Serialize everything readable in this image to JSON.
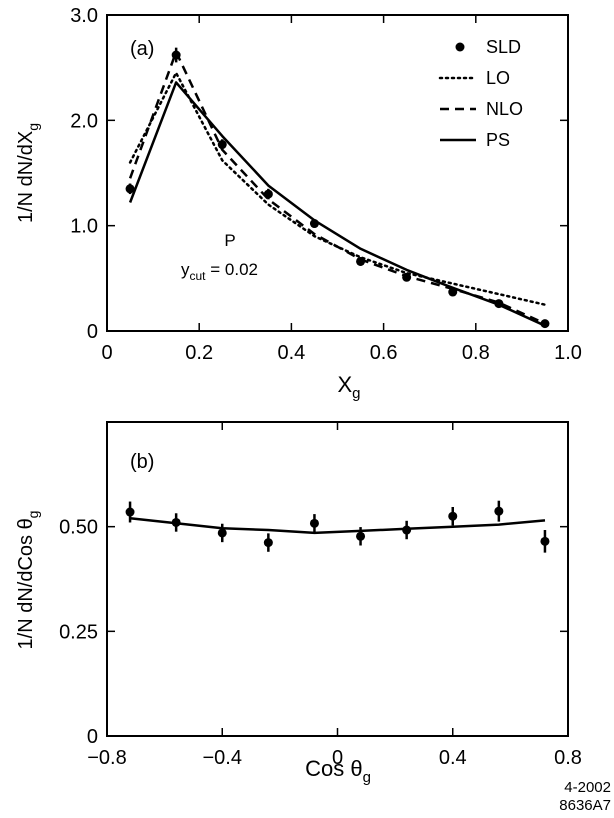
{
  "chart_data": [
    {
      "panel": "(a)",
      "type": "line",
      "ylabel_main": "1/N dN/dX",
      "ylabel_sub": "g",
      "xlabel_main": "X",
      "xlabel_sub": "g",
      "xlim": [
        0,
        1.0
      ],
      "ylim": [
        0,
        3.0
      ],
      "xticks": [
        0,
        0.2,
        0.4,
        0.6,
        0.8,
        1.0
      ],
      "xtick_labels": [
        "0",
        "0.2",
        "0.4",
        "0.6",
        "0.8",
        "1.0"
      ],
      "yticks": [
        0,
        1.0,
        2.0,
        3.0
      ],
      "ytick_labels": [
        "0",
        "1.0",
        "2.0",
        "3.0"
      ],
      "annotation_line1": "P",
      "annotation_y": "y",
      "annotation_sub": "cut",
      "annotation_val": " = 0.02",
      "legend_placement": "top-right",
      "legend": [
        "SLD",
        "LO",
        "NLO",
        "PS"
      ],
      "series": [
        {
          "name": "SLD",
          "style": "points",
          "x": [
            0.05,
            0.15,
            0.25,
            0.35,
            0.45,
            0.55,
            0.65,
            0.75,
            0.85,
            0.95
          ],
          "y": [
            1.35,
            2.62,
            1.77,
            1.3,
            1.02,
            0.66,
            0.51,
            0.37,
            0.26,
            0.07
          ],
          "err": [
            0.05,
            0.07,
            0.05,
            0.05,
            0.04,
            0.04,
            0.03,
            0.03,
            0.03,
            0.02
          ]
        },
        {
          "name": "LO",
          "style": "dotted",
          "x": [
            0.05,
            0.15,
            0.25,
            0.35,
            0.45,
            0.55,
            0.65,
            0.75,
            0.85,
            0.95
          ],
          "y": [
            1.6,
            2.45,
            1.62,
            1.2,
            0.9,
            0.7,
            0.55,
            0.45,
            0.35,
            0.25
          ]
        },
        {
          "name": "NLO",
          "style": "dashed",
          "x": [
            0.05,
            0.15,
            0.25,
            0.35,
            0.45,
            0.55,
            0.65,
            0.75,
            0.85,
            0.95
          ],
          "y": [
            1.45,
            2.65,
            1.72,
            1.25,
            0.92,
            0.68,
            0.52,
            0.4,
            0.27,
            0.07
          ]
        },
        {
          "name": "PS",
          "style": "solid",
          "x": [
            0.05,
            0.15,
            0.25,
            0.35,
            0.45,
            0.55,
            0.65,
            0.75,
            0.85,
            0.95
          ],
          "y": [
            1.22,
            2.36,
            1.85,
            1.38,
            1.05,
            0.78,
            0.58,
            0.41,
            0.25,
            0.05
          ]
        }
      ]
    },
    {
      "panel": "(b)",
      "type": "line",
      "ylabel_main": "1/N dN/dCos θ",
      "ylabel_sub": "g",
      "xlabel_main": "Cos θ",
      "xlabel_sub": "g",
      "xlim": [
        -0.8,
        0.8
      ],
      "ylim": [
        0,
        0.75
      ],
      "xticks": [
        -0.8,
        -0.4,
        0,
        0.4,
        0.8
      ],
      "xtick_labels": [
        "−0.8",
        "−0.4",
        "0",
        "0.4",
        "0.8"
      ],
      "yticks": [
        0,
        0.25,
        0.5
      ],
      "ytick_labels": [
        "0",
        "0.25",
        "0.50"
      ],
      "legend": [],
      "series": [
        {
          "name": "SLD",
          "style": "points",
          "x": [
            -0.72,
            -0.56,
            -0.4,
            -0.24,
            -0.08,
            0.08,
            0.24,
            0.4,
            0.56,
            0.72
          ],
          "y": [
            0.535,
            0.51,
            0.485,
            0.462,
            0.508,
            0.477,
            0.492,
            0.525,
            0.537,
            0.465
          ],
          "err": [
            0.025,
            0.022,
            0.022,
            0.022,
            0.022,
            0.022,
            0.022,
            0.022,
            0.025,
            0.027
          ]
        },
        {
          "name": "PS",
          "style": "solid",
          "x": [
            -0.72,
            -0.4,
            -0.24,
            -0.08,
            0.08,
            0.24,
            0.4,
            0.56,
            0.72
          ],
          "y": [
            0.52,
            0.496,
            0.492,
            0.485,
            0.49,
            0.495,
            0.5,
            0.505,
            0.515
          ]
        }
      ]
    }
  ],
  "footer": {
    "date": "4-2002",
    "code": "8636A7"
  }
}
